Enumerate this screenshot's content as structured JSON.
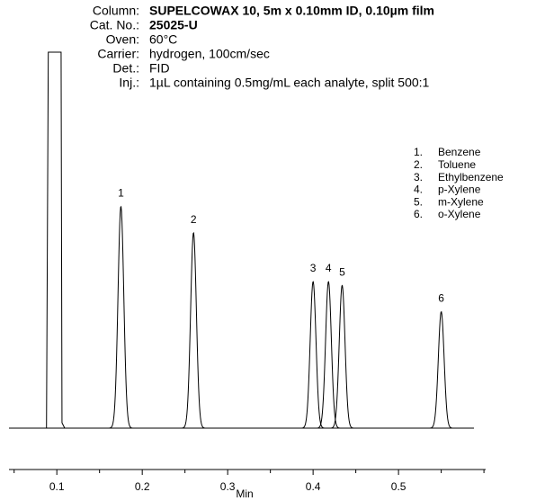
{
  "header": [
    {
      "label": "Column:",
      "value": "SUPELCOWAX 10, 5m x 0.10mm ID, 0.10µm film"
    },
    {
      "label": "Cat. No.:",
      "value": "25025-U"
    },
    {
      "label": "Oven:",
      "value": "60°C"
    },
    {
      "label": "Carrier:",
      "value": "hydrogen, 100cm/sec"
    },
    {
      "label": "Det.:",
      "value": "FID"
    },
    {
      "label": "Inj.:",
      "value": "1µL containing 0.5mg/mL each analyte, split 500:1"
    }
  ],
  "chart_data": {
    "type": "line",
    "x": [
      0.175,
      0.26,
      0.4,
      0.418,
      0.434,
      0.55
    ],
    "values": [
      59,
      52,
      39,
      39,
      38,
      31
    ],
    "peak_labels": [
      "1",
      "2",
      "3",
      "4",
      "5",
      "6"
    ],
    "legend": [
      {
        "number": "1.",
        "name": "Benzene"
      },
      {
        "number": "2.",
        "name": "Toluene"
      },
      {
        "number": "3.",
        "name": "Ethylbenzene"
      },
      {
        "number": "4.",
        "name": "p-Xylene"
      },
      {
        "number": "5.",
        "name": "m-Xylene"
      },
      {
        "number": "6.",
        "name": "o-Xylene"
      }
    ],
    "solvent_front": {
      "start": 0.09,
      "end": 0.105
    },
    "xlabel": "Min",
    "xlim": [
      0.044,
      0.602
    ],
    "ylim": [
      0,
      100
    ],
    "xticks": [
      0.1,
      0.2,
      0.3,
      0.4,
      0.5
    ],
    "xminor_ticks": [
      0.05,
      0.15,
      0.25,
      0.35,
      0.45,
      0.55,
      0.6
    ],
    "color": "#000000"
  }
}
